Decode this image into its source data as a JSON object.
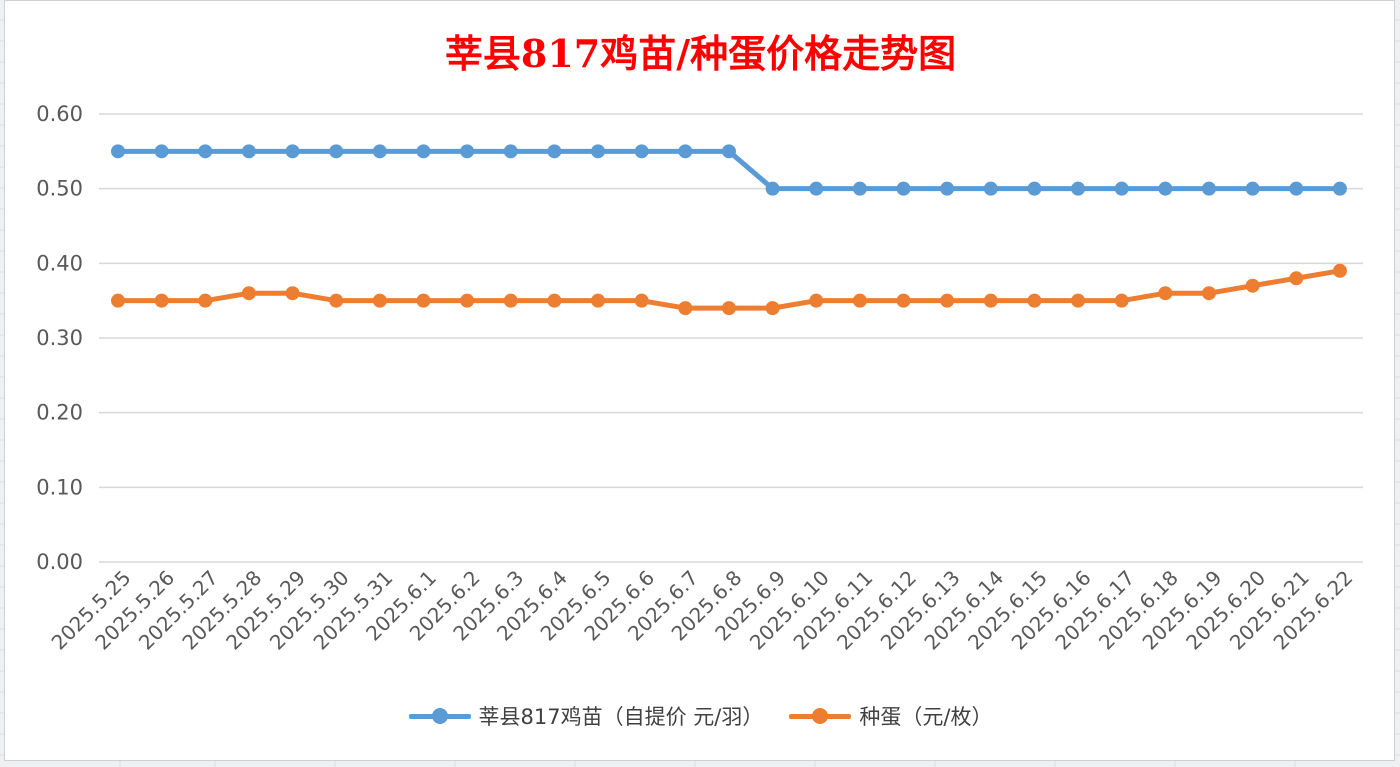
{
  "chart_data": {
    "type": "line",
    "title": "莘县817鸡苗/种蛋价格走势图",
    "xlabel": "",
    "ylabel": "",
    "ylim": [
      0,
      0.6
    ],
    "yticks": [
      "0.00",
      "0.10",
      "0.20",
      "0.30",
      "0.40",
      "0.50",
      "0.60"
    ],
    "grid": true,
    "legend_position": "bottom",
    "categories": [
      "2025.5.25",
      "2025.5.26",
      "2025.5.27",
      "2025.5.28",
      "2025.5.29",
      "2025.5.30",
      "2025.5.31",
      "2025.6.1",
      "2025.6.2",
      "2025.6.3",
      "2025.6.4",
      "2025.6.5",
      "2025.6.6",
      "2025.6.7",
      "2025.6.8",
      "2025.6.9",
      "2025.6.10",
      "2025.6.11",
      "2025.6.12",
      "2025.6.13",
      "2025.6.14",
      "2025.6.15",
      "2025.6.16",
      "2025.6.17",
      "2025.6.18",
      "2025.6.19",
      "2025.6.20",
      "2025.6.21",
      "2025.6.22"
    ],
    "series": [
      {
        "name": "莘县817鸡苗（自提价 元/羽）",
        "color": "#5b9bd5",
        "values": [
          0.55,
          0.55,
          0.55,
          0.55,
          0.55,
          0.55,
          0.55,
          0.55,
          0.55,
          0.55,
          0.55,
          0.55,
          0.55,
          0.55,
          0.55,
          0.5,
          0.5,
          0.5,
          0.5,
          0.5,
          0.5,
          0.5,
          0.5,
          0.5,
          0.5,
          0.5,
          0.5,
          0.5,
          0.5
        ]
      },
      {
        "name": "种蛋（元/枚）",
        "color": "#ed7d31",
        "values": [
          0.35,
          0.35,
          0.35,
          0.36,
          0.36,
          0.35,
          0.35,
          0.35,
          0.35,
          0.35,
          0.35,
          0.35,
          0.35,
          0.34,
          0.34,
          0.34,
          0.35,
          0.35,
          0.35,
          0.35,
          0.35,
          0.35,
          0.35,
          0.35,
          0.36,
          0.36,
          0.37,
          0.38,
          0.39
        ]
      }
    ]
  }
}
